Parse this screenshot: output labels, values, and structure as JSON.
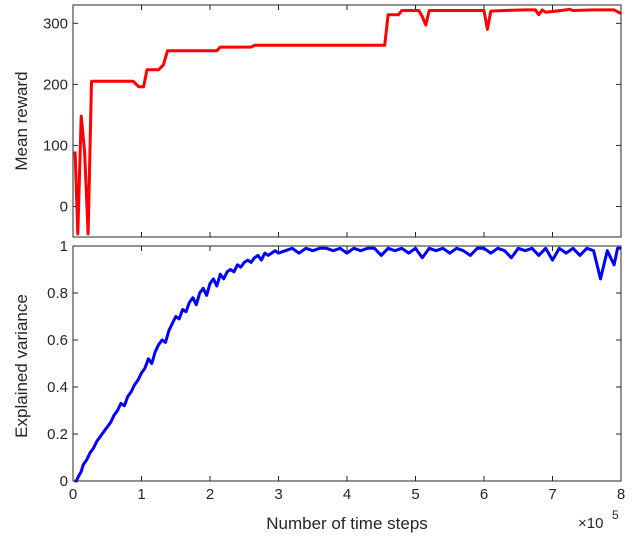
{
  "chart_data": [
    {
      "type": "line",
      "ylabel": "Mean reward",
      "xlim": [
        0,
        800000
      ],
      "ylim": [
        -50,
        330
      ],
      "xticks": [
        0,
        100000,
        200000,
        300000,
        400000,
        500000,
        600000,
        700000,
        800000
      ],
      "yticks": [
        0,
        100,
        200,
        300
      ],
      "ytick_labels": [
        "0",
        "100",
        "200",
        "300"
      ],
      "grid": false,
      "series": [
        {
          "color": "#ff0000",
          "x": [
            3000,
            7000,
            12000,
            17000,
            22000,
            27000,
            31000,
            60000,
            88000,
            96000,
            103000,
            108000,
            125000,
            132000,
            138000,
            170000,
            210000,
            215000,
            260000,
            265000,
            300000,
            455000,
            460000,
            475000,
            480000,
            505000,
            510000,
            515000,
            520000,
            600000,
            605000,
            610000,
            630000,
            660000,
            675000,
            680000,
            685000,
            690000,
            720000,
            725000,
            730000,
            760000,
            790000,
            800000
          ],
          "values": [
            90,
            -45,
            148,
            90,
            -45,
            205,
            205,
            205,
            205,
            196,
            196,
            224,
            224,
            232,
            255,
            255,
            255,
            261,
            261,
            264,
            264,
            264,
            314,
            314,
            321,
            321,
            311,
            297,
            321,
            321,
            290,
            320,
            321,
            322,
            322,
            314,
            322,
            318,
            322,
            323,
            321,
            322,
            322,
            316
          ]
        }
      ]
    },
    {
      "type": "line",
      "xlabel": "Number of time steps",
      "ylabel": "Explained variance",
      "xlim": [
        0,
        800000
      ],
      "ylim": [
        0,
        1
      ],
      "xticks": [
        0,
        100000,
        200000,
        300000,
        400000,
        500000,
        600000,
        700000,
        800000
      ],
      "xtick_labels": [
        "0",
        "1",
        "2",
        "3",
        "4",
        "5",
        "6",
        "7",
        "8"
      ],
      "yticks": [
        0,
        0.2,
        0.4,
        0.6,
        0.8,
        1
      ],
      "ytick_labels": [
        "0",
        "0.2",
        "0.4",
        "0.6",
        "0.8",
        "1"
      ],
      "x_exponent_base": "×10",
      "x_exponent": "5",
      "grid": false,
      "series": [
        {
          "color": "#0000ff",
          "x": [
            2000,
            5000,
            8000,
            12000,
            15000,
            20000,
            25000,
            30000,
            35000,
            40000,
            45000,
            50000,
            55000,
            60000,
            65000,
            70000,
            75000,
            80000,
            85000,
            90000,
            95000,
            100000,
            105000,
            110000,
            115000,
            120000,
            125000,
            130000,
            135000,
            140000,
            145000,
            150000,
            155000,
            160000,
            165000,
            170000,
            175000,
            180000,
            185000,
            190000,
            195000,
            200000,
            205000,
            210000,
            215000,
            220000,
            225000,
            230000,
            235000,
            240000,
            245000,
            250000,
            255000,
            260000,
            265000,
            270000,
            275000,
            280000,
            285000,
            290000,
            295000,
            300000,
            310000,
            320000,
            330000,
            340000,
            350000,
            360000,
            370000,
            380000,
            390000,
            400000,
            410000,
            420000,
            430000,
            440000,
            450000,
            460000,
            470000,
            480000,
            490000,
            500000,
            510000,
            520000,
            530000,
            540000,
            550000,
            560000,
            570000,
            580000,
            590000,
            600000,
            610000,
            620000,
            630000,
            640000,
            650000,
            660000,
            670000,
            680000,
            690000,
            700000,
            710000,
            720000,
            730000,
            740000,
            750000,
            760000,
            770000,
            780000,
            785000,
            790000,
            795000,
            800000
          ],
          "values": [
            0.0,
            0.0,
            0.02,
            0.04,
            0.07,
            0.09,
            0.12,
            0.14,
            0.17,
            0.19,
            0.21,
            0.23,
            0.25,
            0.28,
            0.3,
            0.33,
            0.32,
            0.36,
            0.38,
            0.41,
            0.43,
            0.46,
            0.48,
            0.52,
            0.5,
            0.55,
            0.58,
            0.6,
            0.59,
            0.64,
            0.67,
            0.7,
            0.69,
            0.73,
            0.72,
            0.76,
            0.78,
            0.75,
            0.8,
            0.82,
            0.79,
            0.84,
            0.86,
            0.83,
            0.88,
            0.86,
            0.89,
            0.9,
            0.89,
            0.92,
            0.91,
            0.93,
            0.94,
            0.93,
            0.95,
            0.96,
            0.94,
            0.97,
            0.96,
            0.97,
            0.98,
            0.97,
            0.98,
            0.99,
            0.97,
            0.99,
            0.98,
            0.99,
            0.99,
            0.98,
            0.99,
            0.97,
            0.99,
            0.98,
            0.99,
            0.99,
            0.96,
            0.99,
            0.98,
            0.99,
            0.97,
            0.99,
            0.95,
            0.99,
            0.98,
            0.99,
            0.97,
            0.99,
            0.98,
            0.96,
            0.99,
            0.99,
            0.97,
            0.99,
            0.98,
            0.95,
            0.99,
            0.98,
            0.99,
            0.96,
            0.99,
            0.94,
            0.99,
            0.97,
            0.99,
            0.96,
            0.99,
            0.98,
            0.86,
            0.98,
            0.95,
            0.92,
            0.99,
            0.99
          ]
        }
      ]
    }
  ]
}
